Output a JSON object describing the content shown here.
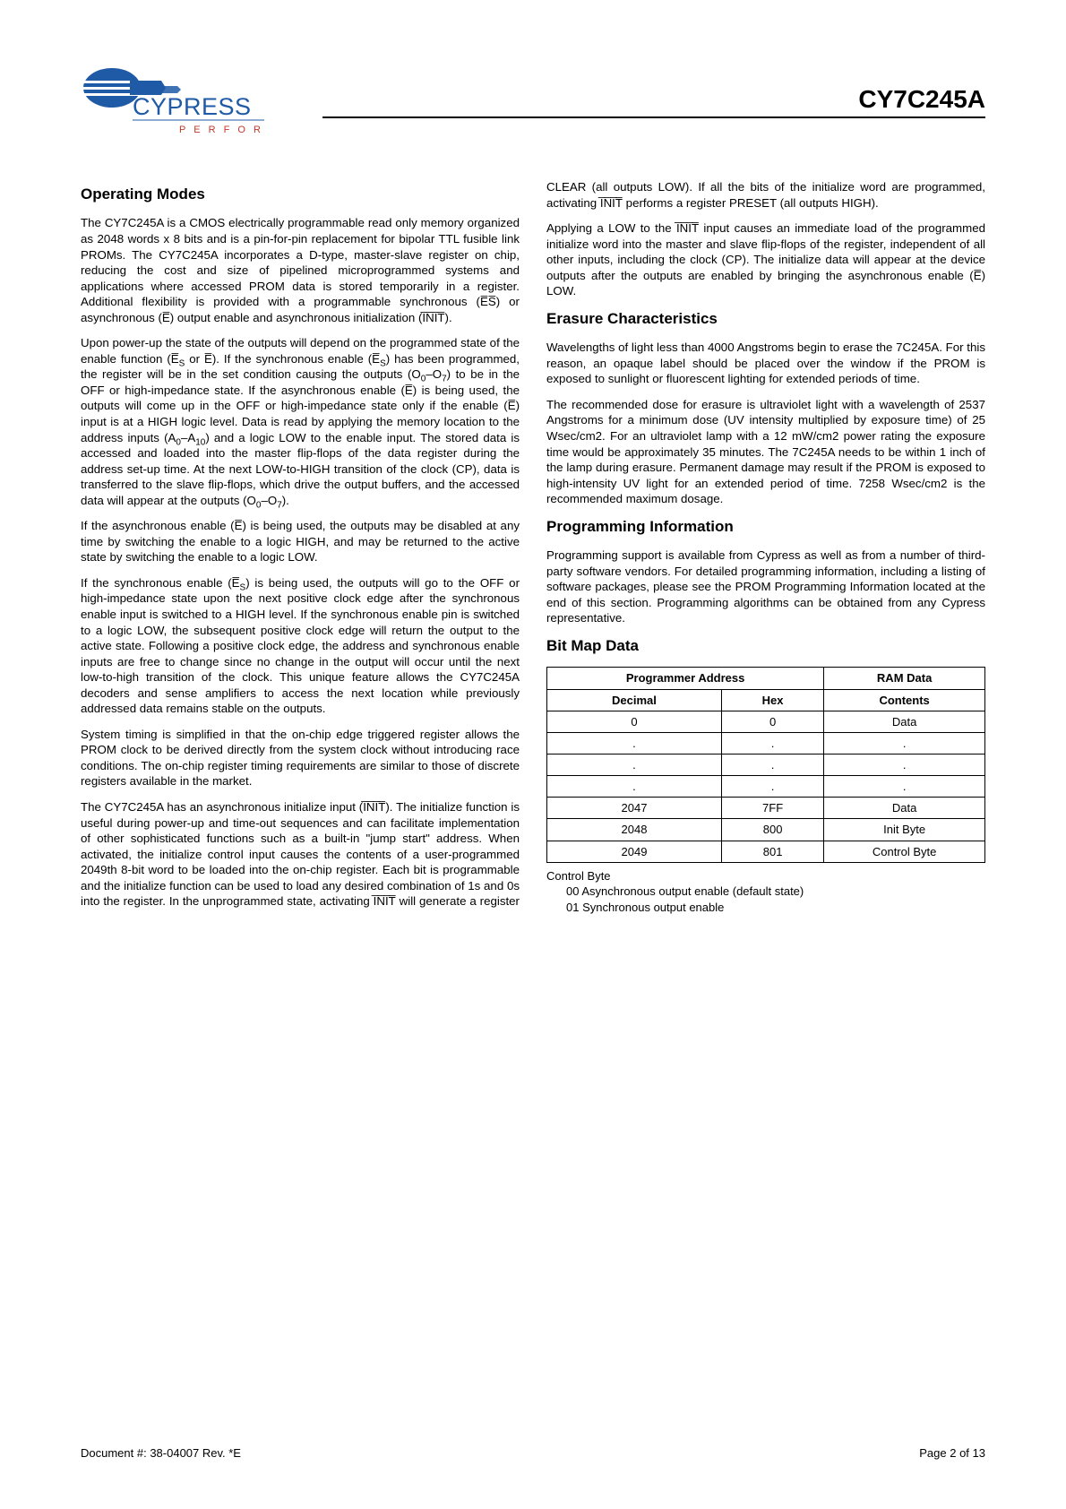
{
  "header": {
    "part_number": "CY7C245A",
    "logo_text": "CYPRESS",
    "logo_sub": "P E R F O R M",
    "logo_colors": {
      "blue": "#1f5aa6",
      "red": "#c0392b",
      "gray": "#666666"
    }
  },
  "sections": {
    "operating_modes": {
      "title": "Operating Modes",
      "p1": "The CY7C245A is a CMOS electrically programmable read only memory organized as 2048 words x 8 bits and is a pin-for-pin replacement for bipolar TTL fusible link PROMs. The CY7C245A incorporates a D-type, master-slave register on chip, reducing the cost and size of pipelined micropro­grammed systems and applications where accessed PROM data is stored temporarily in a register. Additional flexibility is provided with a programmable synchronous (E̅S̅) or asynchronous (E̅) output enable and asynchronous initial­ization (I̅N̅I̅T̅).",
      "p2a": "Upon power-up the state of the outputs will depend on the programmed state of the enable function (E̅",
      "p2b": " or E̅). If the synchronous enable (E̅",
      "p2c": ") has been programmed, the register will be in the set condition causing the outputs (O",
      "p2d": "–O",
      "p2e": ") to be in the OFF or high-impedance state. If the asynchronous enable (E̅) is being used, the outputs will come up in the OFF or high-impedance state only if the enable (E̅) input is at a HIGH logic level. Data is read by applying the memory location to the address inputs (A",
      "p2f": "–A",
      "p2g": ") and a logic LOW to the enable input. The stored data is accessed and loaded into the master flip-flops of the data register during the address set-up time. At the next LOW-to-HIGH transition of the clock (CP), data is transferred to the slave flip-flops, which drive the output buffers, and the accessed data will appear at the outputs (O",
      "p2h": "–O",
      "p2i": ").",
      "p3": "If the asynchronous enable (E̅) is being used, the outputs may be disabled at any time by switching the enable to a logic HIGH, and may be returned to the active state by switching the enable to a logic LOW.",
      "p4a": "If the synchronous enable (E̅",
      "p4b": ") is being used, the outputs will go to the OFF or high-impedance state upon the next positive clock edge after the synchronous enable input is switched to a HIGH level. If the synchronous enable pin is switched to a logic LOW, the subsequent positive clock edge will return the output to the active state. Following a positive clock edge, the address and synchronous enable inputs are free to change since no change in the output will occur until the next low-to-high transition of the clock. This unique feature allows the CY7C245A decoders and sense amplifiers to access the next location while previously addressed data remains stable on the outputs.",
      "p5": "System timing is simplified in that the on-chip edge triggered register allows the PROM clock to be derived directly from the system clock without introducing race conditions. The on-chip register timing requirements are similar to those of discrete registers available in the market.",
      "p6": "The CY7C245A has an asynchronous initialize input (I̅N̅I̅T̅). The initialize function is useful during power-up and time-out sequences and can facilitate implementation of other sophis­ticated functions such as a built-in \"jump start\" address. When activated, the initialize control input causes the contents of a user-programmed 2049th 8-bit word to be loaded into the on-chip register. Each bit is programmable and the initialize function can be used to load any desired combination of 1s and 0s into the register. In the unprogrammed state, activating I̅N̅I̅T̅ will generate a register CLEAR (all outputs LOW). If all the bits of the initialize word are programmed, activating I̅N̅I̅T̅ performs a register PRESET (all outputs HIGH).",
      "p7": "Applying a LOW to the I̅N̅I̅T̅ input causes an immediate load of the programmed initialize word into the master and slave flip-flops of the register, independent of all other inputs, including the clock (CP). The initialize data will appear at the device outputs after the outputs are enabled by bringing the asynchronous enable (E̅) LOW."
    },
    "erasure": {
      "title": "Erasure Characteristics",
      "p1": "Wavelengths of light less than 4000 Angstroms begin to erase the 7C245A. For this reason, an opaque label should be placed over the window if the PROM is exposed to sunlight or fluorescent lighting for extended periods of time.",
      "p2": "The recommended dose for erasure is ultraviolet light with a wavelength of 2537 Angstroms for a minimum dose (UV intensity multiplied by exposure time) of 25 Wsec/cm2. For an ultraviolet lamp with a 12 mW/cm2 power rating the exposure time would be approximately 35 minutes. The 7C245A needs to be within 1 inch of the lamp during erasure. Permanent damage may result if the PROM is exposed to high-intensity UV light for an extended period of time. 7258 Wsec/cm2 is the recommended maximum dosage."
    },
    "programming": {
      "title": "Programming Information",
      "p1": "Programming support is available from Cypress as well as from a number of third-party software vendors. For detailed programming information, including a listing of software packages, please see the PROM Programming Information located at the end of this section. Programming algorithms can be obtained from any Cypress representative."
    },
    "bitmap": {
      "title": "Bit Map Data",
      "head_prog": "Programmer Address",
      "head_ram": "RAM Data",
      "head_dec": "Decimal",
      "head_hex": "Hex",
      "head_cont": "Contents",
      "rows": [
        {
          "dec": "0",
          "hex": "0",
          "cont": "Data"
        },
        {
          "dec": ".",
          "hex": ".",
          "cont": "."
        },
        {
          "dec": ".",
          "hex": ".",
          "cont": "."
        },
        {
          "dec": ".",
          "hex": ".",
          "cont": "."
        },
        {
          "dec": "2047",
          "hex": "7FF",
          "cont": "Data"
        },
        {
          "dec": "2048",
          "hex": "800",
          "cont": "Init Byte"
        },
        {
          "dec": "2049",
          "hex": "801",
          "cont": "Control Byte"
        }
      ],
      "ctrl_label": "Control Byte",
      "ctrl_00": "00   Asynchronous output enable (default state)",
      "ctrl_01": "01   Synchronous output enable"
    }
  },
  "footer": {
    "doc": "Document #: 38-04007 Rev. *E",
    "page": "Page 2 of 13"
  }
}
